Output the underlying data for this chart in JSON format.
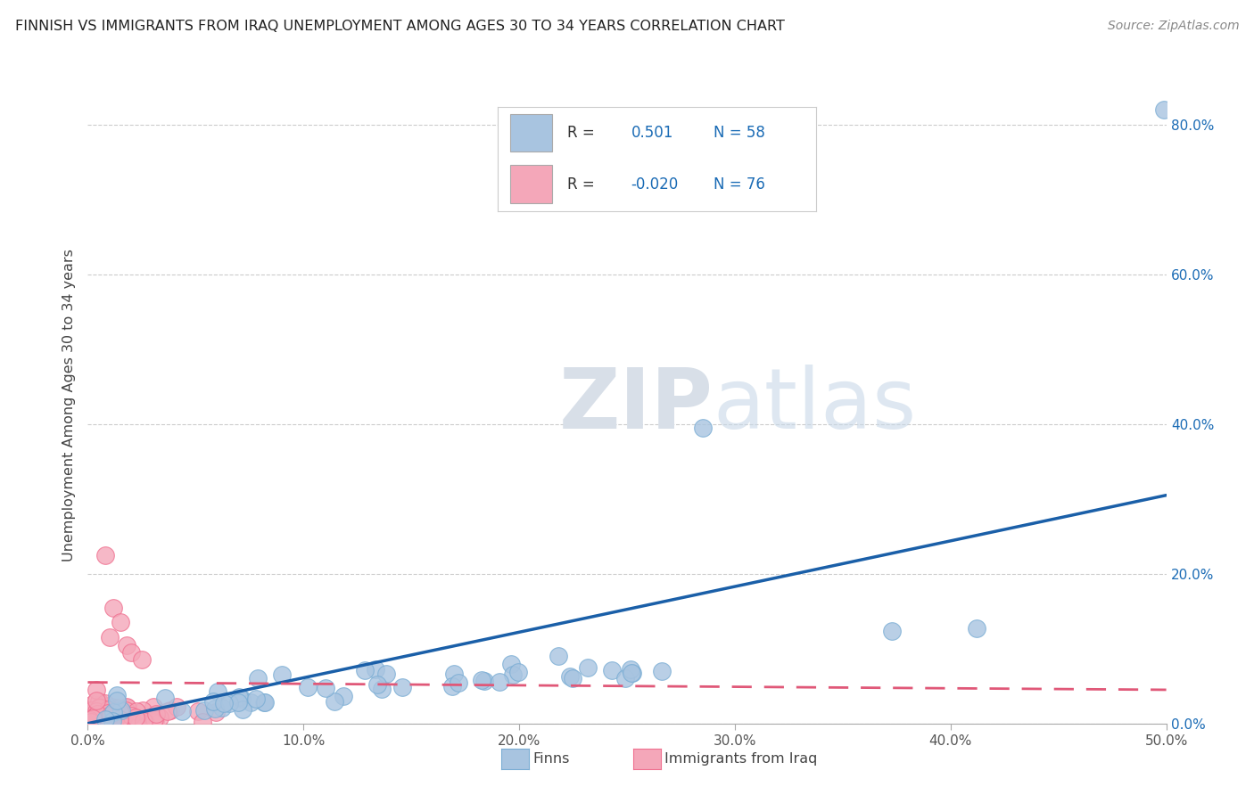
{
  "title": "FINNISH VS IMMIGRANTS FROM IRAQ UNEMPLOYMENT AMONG AGES 30 TO 34 YEARS CORRELATION CHART",
  "source": "Source: ZipAtlas.com",
  "ylabel": "Unemployment Among Ages 30 to 34 years",
  "xlabel_finn": "Finns",
  "xlabel_iraq": "Immigrants from Iraq",
  "xlim": [
    0.0,
    0.5
  ],
  "ylim": [
    0.0,
    0.85
  ],
  "xtick_vals": [
    0.0,
    0.1,
    0.2,
    0.3,
    0.4,
    0.5
  ],
  "xtick_labels": [
    "0.0%",
    "10.0%",
    "20.0%",
    "30.0%",
    "40.0%",
    "50.0%"
  ],
  "ytick_labels_right": [
    "0.0%",
    "20.0%",
    "40.0%",
    "60.0%",
    "80.0%"
  ],
  "ytick_vals_right": [
    0.0,
    0.2,
    0.4,
    0.6,
    0.8
  ],
  "finn_color": "#a8c4e0",
  "iraq_color": "#f4a7b9",
  "finn_edge_color": "#7aadd4",
  "iraq_edge_color": "#f07090",
  "finn_line_color": "#1a5fa8",
  "iraq_line_color": "#e05878",
  "watermark_zip": "ZIP",
  "watermark_atlas": "atlas",
  "background_color": "#ffffff",
  "grid_color": "#cccccc",
  "legend_finn_r": "R =  0.501",
  "legend_finn_n": "N = 58",
  "legend_iraq_r": "R = -0.020",
  "legend_iraq_n": "N = 76"
}
